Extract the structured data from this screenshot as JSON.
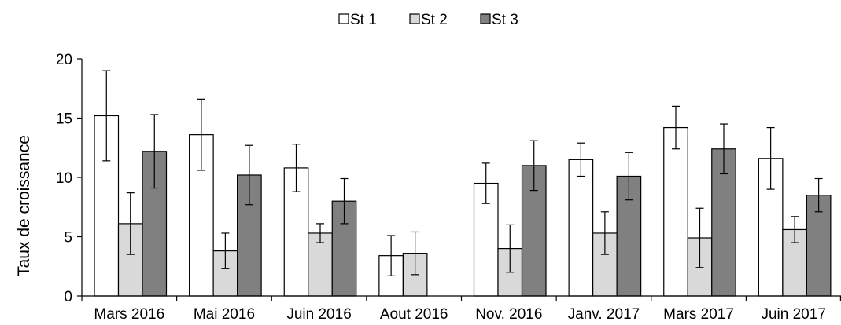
{
  "chart_data": {
    "type": "bar",
    "ylabel": "Taux de croissance",
    "ylim": [
      0,
      20
    ],
    "yticks": [
      0,
      5,
      10,
      15,
      20
    ],
    "grid": false,
    "legend_position": "top-center",
    "categories": [
      "Mars 2016",
      "Mai 2016",
      "Juin 2016",
      "Aout 2016",
      "Nov. 2016",
      "Janv. 2017",
      "Mars 2017",
      "Juin 2017"
    ],
    "series": [
      {
        "name": "St 1",
        "color": "#ffffff",
        "values": [
          15.2,
          13.6,
          10.8,
          3.4,
          9.5,
          11.5,
          14.2,
          11.6
        ],
        "errors": [
          3.8,
          3.0,
          2.0,
          1.7,
          1.7,
          1.4,
          1.8,
          2.6
        ]
      },
      {
        "name": "St 2",
        "color": "#d9d9d9",
        "values": [
          6.1,
          3.8,
          5.3,
          3.6,
          4.0,
          5.3,
          4.9,
          5.6
        ],
        "errors": [
          2.6,
          1.5,
          0.8,
          1.8,
          2.0,
          1.8,
          2.5,
          1.1
        ]
      },
      {
        "name": "St 3",
        "color": "#808080",
        "values": [
          12.2,
          10.2,
          8.0,
          null,
          11.0,
          10.1,
          12.4,
          8.5
        ],
        "errors": [
          3.1,
          2.5,
          1.9,
          null,
          2.1,
          2.0,
          2.1,
          1.4
        ]
      }
    ]
  }
}
